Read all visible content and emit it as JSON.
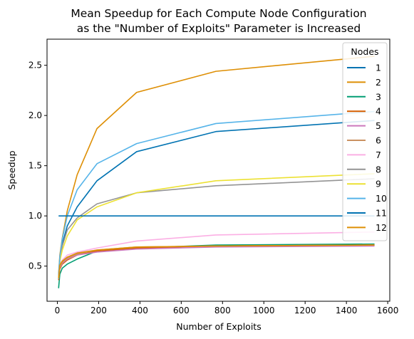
{
  "chart_data": {
    "type": "line",
    "title_line1": "Mean Speedup for Each Compute Node Configuration",
    "title_line2": "as the \"Number of Exploits\" Parameter is Increased",
    "xlabel": "Number of Exploits",
    "ylabel": "Speedup",
    "xlim": [
      -50,
      1610
    ],
    "ylim": [
      0.15,
      2.76
    ],
    "x_ticks": [
      0,
      200,
      400,
      600,
      800,
      1000,
      1200,
      1400,
      1600
    ],
    "x_tick_labels": [
      "0",
      "200",
      "400",
      "600",
      "800",
      "1000",
      "1200",
      "1400",
      "1600"
    ],
    "y_ticks": [
      0.5,
      1.0,
      1.5,
      2.0,
      2.5
    ],
    "y_tick_labels": [
      "0.5",
      "1.0",
      "1.5",
      "2.0",
      "2.5"
    ],
    "grid": false,
    "legend_title": "Nodes",
    "legend_position": "top-right",
    "x": [
      6,
      12,
      24,
      48,
      96,
      192,
      384,
      768,
      1536
    ],
    "series": [
      {
        "name": "1",
        "color": "#0173b2",
        "values": [
          0.4,
          0.55,
          0.72,
          0.9,
          1.09,
          1.35,
          1.64,
          1.84,
          1.95
        ]
      },
      {
        "name": "2",
        "color": "#de8f05",
        "values": [
          0.42,
          0.61,
          0.78,
          1.05,
          1.41,
          1.87,
          2.23,
          2.44,
          2.59
        ]
      },
      {
        "name": "3",
        "color": "#029e73",
        "values": [
          0.28,
          0.42,
          0.48,
          0.52,
          0.57,
          0.65,
          0.68,
          0.71,
          0.72
        ]
      },
      {
        "name": "4",
        "color": "#d55e00",
        "values": [
          0.36,
          0.47,
          0.52,
          0.56,
          0.61,
          0.65,
          0.68,
          0.7,
          0.71
        ]
      },
      {
        "name": "5",
        "color": "#cc78bc",
        "values": [
          0.38,
          0.48,
          0.53,
          0.57,
          0.61,
          0.64,
          0.67,
          0.69,
          0.7
        ]
      },
      {
        "name": "6",
        "color": "#ca9161",
        "values": [
          0.38,
          0.49,
          0.54,
          0.58,
          0.62,
          0.66,
          0.69,
          0.7,
          0.71
        ]
      },
      {
        "name": "7",
        "color": "#fbafe4",
        "values": [
          0.4,
          0.51,
          0.56,
          0.61,
          0.64,
          0.68,
          0.75,
          0.81,
          0.84
        ]
      },
      {
        "name": "8",
        "color": "#949494",
        "values": [
          0.37,
          0.55,
          0.7,
          0.86,
          0.98,
          1.12,
          1.23,
          1.3,
          1.37
        ]
      },
      {
        "name": "9",
        "color": "#ece133",
        "values": [
          0.38,
          0.55,
          0.66,
          0.8,
          0.96,
          1.09,
          1.23,
          1.35,
          1.42
        ]
      },
      {
        "name": "10",
        "color": "#56b4e9",
        "values": [
          0.41,
          0.59,
          0.77,
          1.0,
          1.26,
          1.52,
          1.72,
          1.92,
          2.04
        ]
      },
      {
        "name": "11",
        "color": "#0173b2",
        "values": [
          1.0,
          1.0,
          1.0,
          1.0,
          1.0,
          1.0,
          1.0,
          1.0,
          1.0
        ]
      },
      {
        "name": "12",
        "color": "#de8f05",
        "values": [
          0.38,
          0.51,
          0.55,
          0.59,
          0.63,
          0.66,
          0.69,
          0.7,
          0.71
        ]
      }
    ]
  }
}
